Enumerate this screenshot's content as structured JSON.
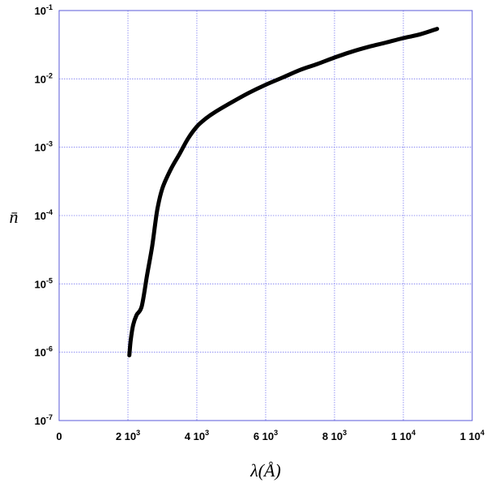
{
  "chart_data": {
    "type": "line",
    "title": "",
    "xlabel": "λ(Å)",
    "ylabel": "n̄",
    "xlim": [
      0,
      12000
    ],
    "ylim": [
      1e-07,
      0.1
    ],
    "yscale": "log",
    "grid": true,
    "grid_color": "#7a7af0",
    "line_color": "#000000",
    "x_ticks": [
      {
        "value": 0,
        "label": "0",
        "sup": ""
      },
      {
        "value": 2000,
        "label": "2 10",
        "sup": "3"
      },
      {
        "value": 4000,
        "label": "4 10",
        "sup": "3"
      },
      {
        "value": 6000,
        "label": "6 10",
        "sup": "3"
      },
      {
        "value": 8000,
        "label": "8 10",
        "sup": "3"
      },
      {
        "value": 10000,
        "label": "1 10",
        "sup": "4"
      },
      {
        "value": 12000,
        "label": "1 10",
        "sup": "4"
      }
    ],
    "y_ticks": [
      {
        "value": 1e-07,
        "label": "10",
        "sup": "-7"
      },
      {
        "value": 1e-06,
        "label": "10",
        "sup": "-6"
      },
      {
        "value": 1e-05,
        "label": "10",
        "sup": "-5"
      },
      {
        "value": 0.0001,
        "label": "10",
        "sup": "-4"
      },
      {
        "value": 0.001,
        "label": "10",
        "sup": "-3"
      },
      {
        "value": 0.01,
        "label": "10",
        "sup": "-2"
      },
      {
        "value": 0.1,
        "label": "10",
        "sup": "-1"
      }
    ],
    "series": [
      {
        "x": [
          2040,
          2080,
          2150,
          2250,
          2400,
          2550,
          2700,
          2850,
          3000,
          3250,
          3500,
          3750,
          4000,
          4250,
          4500,
          5000,
          5500,
          6000,
          6500,
          7000,
          7500,
          8000,
          8500,
          9000,
          9500,
          10000,
          10500,
          10980
        ],
        "y": [
          9e-07,
          1.5e-06,
          2.5e-06,
          3.5e-06,
          4.7e-06,
          1.3e-05,
          3.5e-05,
          0.00012,
          0.00025,
          0.00048,
          0.0008,
          0.00135,
          0.002,
          0.0026,
          0.0032,
          0.0045,
          0.0062,
          0.0082,
          0.0105,
          0.0135,
          0.0165,
          0.0205,
          0.025,
          0.0295,
          0.034,
          0.0395,
          0.045,
          0.054
        ]
      }
    ]
  }
}
